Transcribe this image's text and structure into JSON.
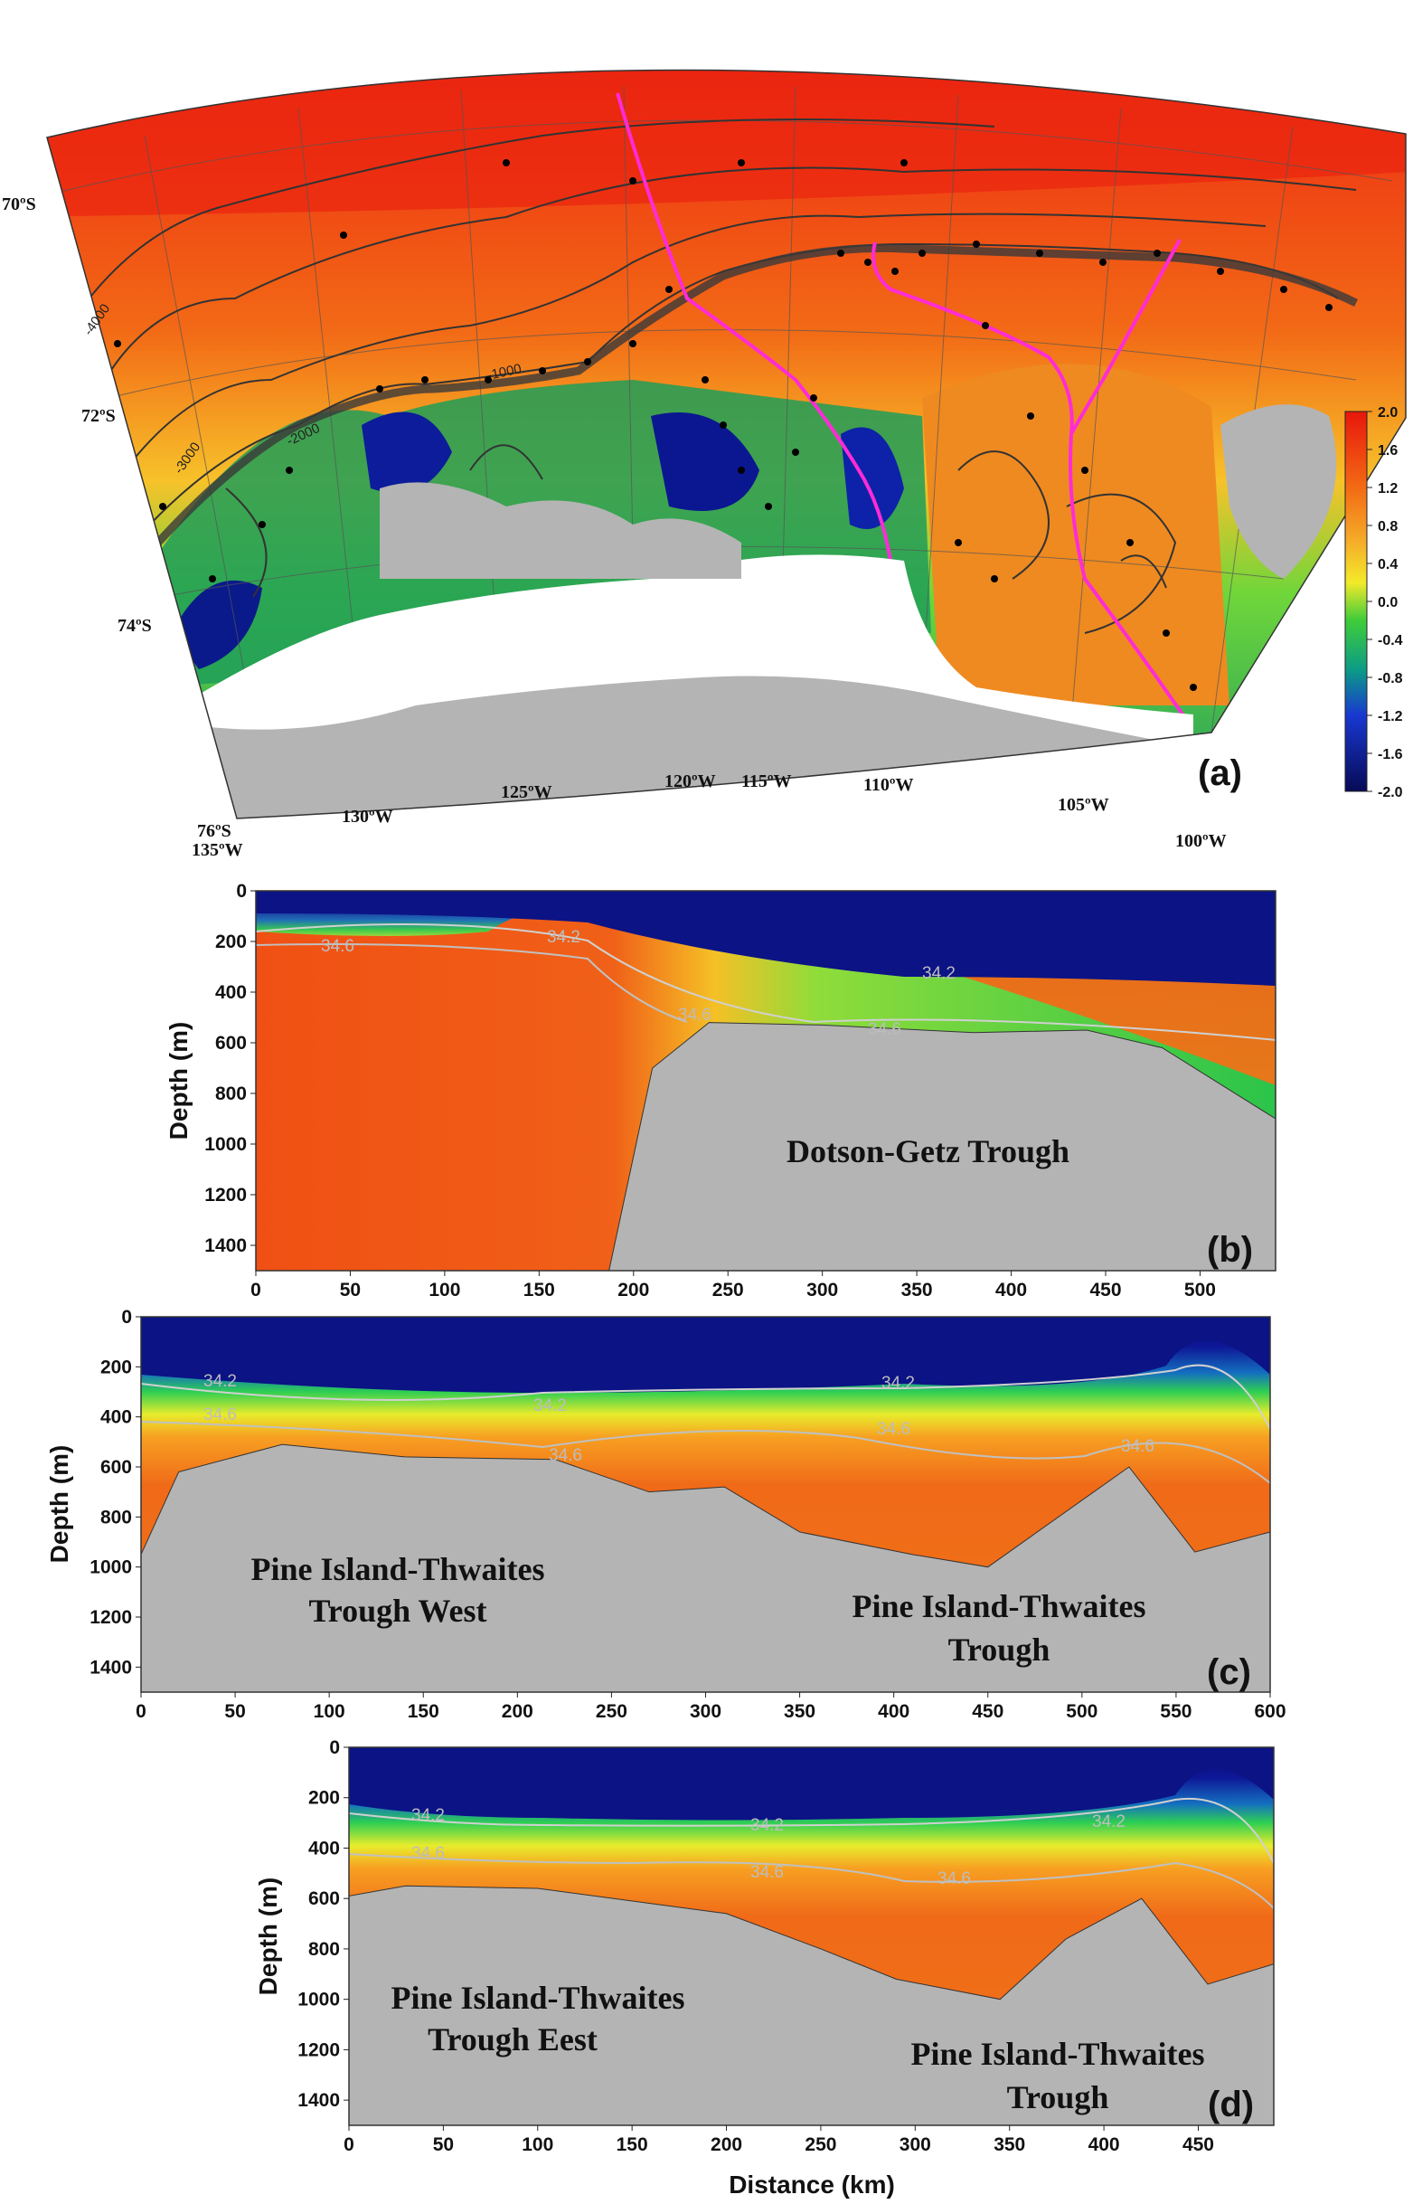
{
  "chart_data": [
    {
      "panel": "(a)",
      "type": "heatmap",
      "lat_labels": [
        "70ºS",
        "72ºS",
        "74ºS",
        "76ºS"
      ],
      "lon_labels": [
        "135ºW",
        "130ºW",
        "125ºW",
        "120ºW",
        "115ºW",
        "110ºW",
        "105ºW",
        "100ºW"
      ],
      "bathymetry_labels": [
        "-4000",
        "-3000",
        "-2000",
        "-1000"
      ],
      "colorbar": {
        "ticks": [
          "2.0",
          "1.6",
          "1.2",
          "0.8",
          "0.4",
          "0.0",
          "-0.4",
          "-0.8",
          "-1.2",
          "-1.6",
          "-2.0"
        ],
        "range": [
          -2.0,
          2.0
        ]
      },
      "colors": {
        "warm": "#ee2a12",
        "mid": "#f7df24",
        "cool": "#22c044",
        "cold": "#0b0f8c",
        "land": "#b4b4b4",
        "transect": "#ff2bd6"
      }
    },
    {
      "panel": "(b)",
      "type": "heatmap",
      "region_label": "Dotson-Getz Trough",
      "ylabel": "Depth (m)",
      "ylim": [
        1500,
        0
      ],
      "yticks": [
        "0",
        "200",
        "400",
        "600",
        "800",
        "1000",
        "1200",
        "1400"
      ],
      "xlim": [
        0,
        540
      ],
      "xticks": [
        "0",
        "50",
        "100",
        "150",
        "200",
        "250",
        "300",
        "350",
        "400",
        "450",
        "500"
      ],
      "contour_labels": [
        "34.2",
        "34.6",
        "34.2",
        "34.6",
        "34.6"
      ],
      "seabed": {
        "x": [
          0,
          187,
          210,
          240,
          300,
          380,
          440,
          480,
          540
        ],
        "depth": [
          1500,
          1500,
          700,
          520,
          530,
          560,
          550,
          620,
          900
        ]
      }
    },
    {
      "panel": "(c)",
      "type": "heatmap",
      "region_labels": [
        "Pine Island-Thwaites",
        "Trough West",
        "Pine Island-Thwaites",
        "Trough"
      ],
      "ylabel": "Depth (m)",
      "ylim": [
        1500,
        0
      ],
      "yticks": [
        "0",
        "200",
        "400",
        "600",
        "800",
        "1000",
        "1200",
        "1400"
      ],
      "xlim": [
        0,
        600
      ],
      "xticks": [
        "0",
        "50",
        "100",
        "150",
        "200",
        "250",
        "300",
        "350",
        "400",
        "450",
        "500",
        "550",
        "600"
      ],
      "contour_labels": [
        "34.2",
        "34.6",
        "34.2",
        "34.6",
        "34.2",
        "34.6",
        "34.6"
      ],
      "seabed": {
        "x": [
          0,
          20,
          75,
          140,
          220,
          270,
          310,
          350,
          410,
          450,
          525,
          560,
          600
        ],
        "depth": [
          950,
          620,
          510,
          560,
          570,
          700,
          680,
          860,
          950,
          1000,
          600,
          940,
          860
        ]
      }
    },
    {
      "panel": "(d)",
      "type": "heatmap",
      "region_labels": [
        "Pine Island-Thwaites",
        "Trough Eest",
        "Pine Island-Thwaites",
        "Trough"
      ],
      "ylabel": "Depth (m)",
      "xlabel": "Distance (km)",
      "ylim": [
        1500,
        0
      ],
      "yticks": [
        "0",
        "200",
        "400",
        "600",
        "800",
        "1000",
        "1200",
        "1400"
      ],
      "xlim": [
        0,
        490
      ],
      "xticks": [
        "0",
        "50",
        "100",
        "150",
        "200",
        "250",
        "300",
        "350",
        "400",
        "450"
      ],
      "contour_labels": [
        "34.2",
        "34.6",
        "34.2",
        "34.6",
        "34.6",
        "34.2"
      ],
      "seabed": {
        "x": [
          0,
          30,
          100,
          200,
          250,
          290,
          345,
          380,
          420,
          455,
          490
        ],
        "depth": [
          590,
          550,
          560,
          660,
          800,
          920,
          1000,
          760,
          600,
          940,
          860
        ]
      }
    }
  ]
}
